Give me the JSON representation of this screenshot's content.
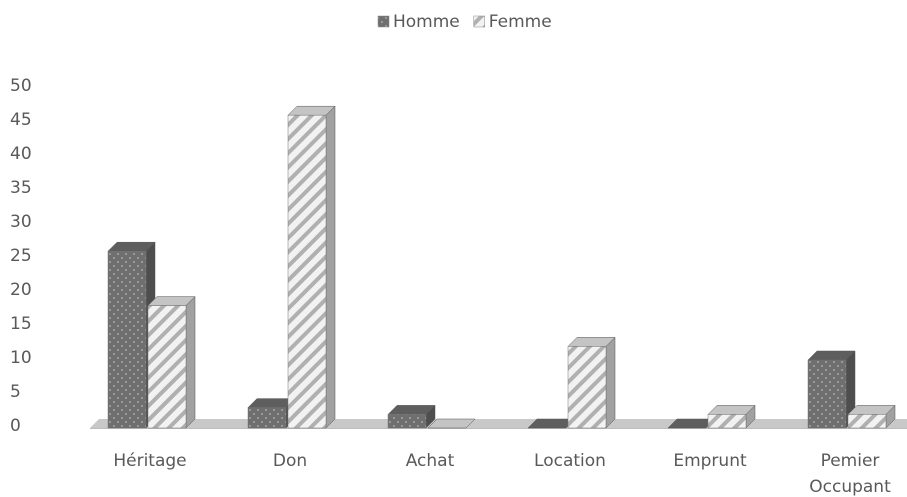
{
  "chart_data": {
    "type": "bar3d",
    "categories": [
      "Héritage",
      "Don",
      "Achat",
      "Location",
      "Emprunt",
      "Pemier Occupant"
    ],
    "series": [
      {
        "name": "Homme",
        "color": "#6f6f6f",
        "values": [
          26,
          3,
          2,
          0,
          0,
          10
        ]
      },
      {
        "name": "Femme",
        "color": "#e6e6e6",
        "values": [
          18,
          46,
          0,
          12,
          2,
          2
        ]
      }
    ],
    "ylim": [
      0,
      50
    ],
    "yticks": [
      0,
      5,
      10,
      15,
      20,
      25,
      30,
      35,
      40,
      45,
      50
    ],
    "grid": false,
    "legend": "top"
  }
}
